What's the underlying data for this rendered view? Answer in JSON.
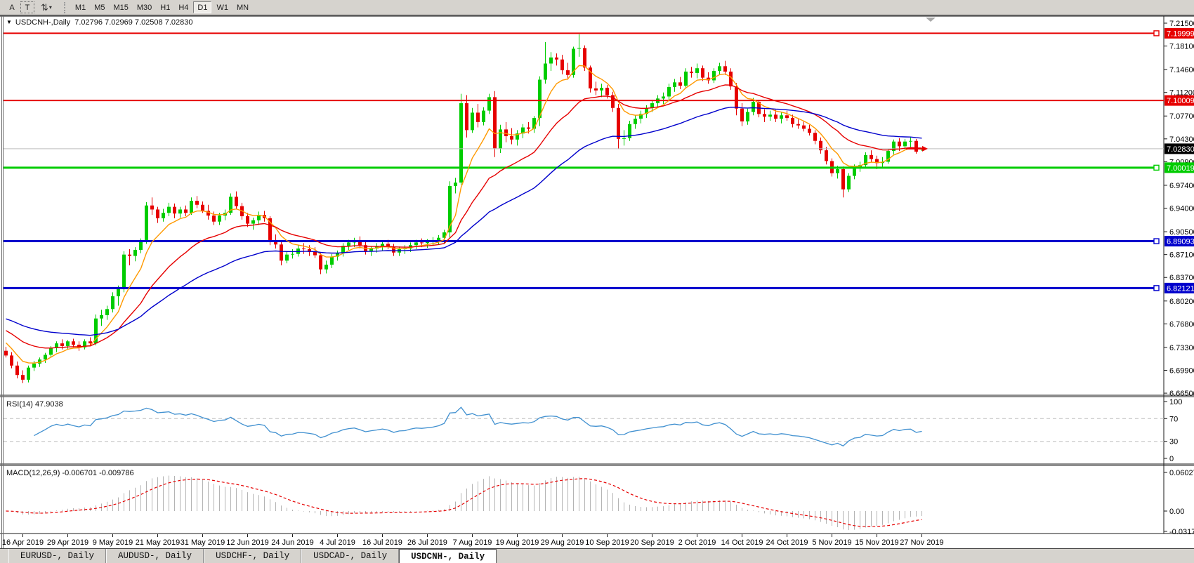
{
  "toolbar": {
    "left_buttons": [
      {
        "label": "A",
        "name": "text-label-tool-button"
      },
      {
        "label": "T",
        "name": "text-tool-button"
      }
    ],
    "arrows_tool": {
      "glyph": "⇅",
      "caret": "▾",
      "name": "arrows-tool-button"
    },
    "timeframes": [
      "M1",
      "M5",
      "M15",
      "M30",
      "H1",
      "H4",
      "D1",
      "W1",
      "MN"
    ],
    "active_timeframe": "D1"
  },
  "chart": {
    "dropdown_glyph": "▼",
    "info_line": "USDCNH-,Daily  7.02796 7.02969 7.02508 7.02830"
  },
  "rsi": {
    "label": "RSI(14) 47.9038"
  },
  "macd": {
    "label": "MACD(12,26,9) -0.006701 -0.009786"
  },
  "tabs": [
    {
      "label": "EURUSD-, Daily",
      "active": false
    },
    {
      "label": "AUDUSD-, Daily",
      "active": false
    },
    {
      "label": "USDCHF-, Daily",
      "active": false
    },
    {
      "label": "USDCAD-, Daily",
      "active": false
    },
    {
      "label": "USDCNH-, Daily",
      "active": true
    }
  ],
  "chart_data": {
    "type": "candlestick",
    "symbol": "USDCNH-",
    "timeframe": "Daily",
    "ohlc_display": {
      "open": "7.02796",
      "high": "7.02969",
      "low": "7.02508",
      "close": "7.02830"
    },
    "up_color": "#00cc00",
    "down_color": "#e60000",
    "current_price": 7.0283,
    "current_price_line_color": "#bdbdbd",
    "price_axis_ticks": [
      "7.21500",
      "7.18100",
      "7.14600",
      "7.11200",
      "7.07700",
      "7.04300",
      "7.00900",
      "6.97400",
      "6.94000",
      "6.90500",
      "6.87100",
      "6.83700",
      "6.80200",
      "6.76800",
      "6.73300",
      "6.69900",
      "6.66500"
    ],
    "price_tags": [
      {
        "text": "7.19999",
        "bg": "#e60000"
      },
      {
        "text": "7.10009",
        "bg": "#e60000"
      },
      {
        "text": "7.02830",
        "bg": "#000000"
      },
      {
        "text": "7.00019",
        "bg": "#00cc00"
      },
      {
        "text": "6.89093",
        "bg": "#0000cc"
      },
      {
        "text": "6.82121",
        "bg": "#0000cc"
      }
    ],
    "hlines": [
      {
        "price": 7.19999,
        "color": "#e60000",
        "width": 2,
        "marker": true
      },
      {
        "price": 7.10009,
        "color": "#e60000",
        "width": 2,
        "marker": false
      },
      {
        "price": 7.00019,
        "color": "#00cc00",
        "width": 3,
        "marker": true
      },
      {
        "price": 6.89093,
        "color": "#0000cc",
        "width": 3,
        "marker": true
      },
      {
        "price": 6.82121,
        "color": "#0000cc",
        "width": 3,
        "marker": true
      }
    ],
    "moving_averages": [
      {
        "period": 7,
        "color": "#ff9900",
        "seed": 6.746,
        "name": "ma-fast-orange"
      },
      {
        "period": 20,
        "color": "#e60000",
        "seed": 6.762,
        "name": "ma-mid-red"
      },
      {
        "period": 45,
        "color": "#0000cc",
        "seed": 6.778,
        "name": "ma-slow-blue"
      }
    ],
    "x_axis": {
      "dates": [
        "16 Apr 2019",
        "29 Apr 2019",
        "9 May 2019",
        "21 May 2019",
        "31 May 2019",
        "12 Jun 2019",
        "24 Jun 2019",
        "4 Jul 2019",
        "16 Jul 2019",
        "26 Jul 2019",
        "7 Aug 2019",
        "19 Aug 2019",
        "29 Aug 2019",
        "10 Sep 2019",
        "20 Sep 2019",
        "2 Oct 2019",
        "14 Oct 2019",
        "24 Oct 2019",
        "5 Nov 2019",
        "15 Nov 2019",
        "27 Nov 2019"
      ],
      "first_tick_bar": 3,
      "bars_per_tick": 8
    },
    "rsi_pane": {
      "ticks": [
        "100",
        "70",
        "30",
        "0"
      ],
      "levels": [
        70,
        30
      ],
      "line_color": "#4090d0",
      "level_color": "#bdbdbd",
      "current_value": 47.9038
    },
    "macd_pane": {
      "ticks": [
        "0.060273",
        "0.00",
        "-0.031725"
      ],
      "hist_color": "#b4b4b4",
      "signal_color": "#e60000",
      "macd_value": -0.006701,
      "signal_value": -0.009786
    },
    "candles": [
      [
        6.728,
        6.734,
        6.718,
        6.721
      ],
      [
        6.721,
        6.726,
        6.702,
        6.706
      ],
      [
        6.706,
        6.712,
        6.687,
        6.692
      ],
      [
        6.692,
        6.699,
        6.68,
        6.685
      ],
      [
        6.685,
        6.706,
        6.681,
        6.703
      ],
      [
        6.703,
        6.713,
        6.698,
        6.709
      ],
      [
        6.709,
        6.718,
        6.704,
        6.715
      ],
      [
        6.715,
        6.725,
        6.71,
        6.722
      ],
      [
        6.722,
        6.735,
        6.718,
        6.732
      ],
      [
        6.732,
        6.742,
        6.726,
        6.739
      ],
      [
        6.739,
        6.745,
        6.73,
        6.735
      ],
      [
        6.735,
        6.744,
        6.731,
        6.742
      ],
      [
        6.742,
        6.746,
        6.733,
        6.737
      ],
      [
        6.737,
        6.742,
        6.728,
        6.733
      ],
      [
        6.733,
        6.745,
        6.73,
        6.742
      ],
      [
        6.742,
        6.748,
        6.735,
        6.739
      ],
      [
        6.739,
        6.782,
        6.736,
        6.776
      ],
      [
        6.776,
        6.789,
        6.765,
        6.781
      ],
      [
        6.781,
        6.795,
        6.774,
        6.79
      ],
      [
        6.79,
        6.815,
        6.785,
        6.809
      ],
      [
        6.809,
        6.825,
        6.795,
        6.82
      ],
      [
        6.82,
        6.876,
        6.815,
        6.871
      ],
      [
        6.871,
        6.879,
        6.855,
        6.869
      ],
      [
        6.869,
        6.882,
        6.861,
        6.878
      ],
      [
        6.878,
        6.895,
        6.873,
        6.891
      ],
      [
        6.891,
        6.949,
        6.887,
        6.944
      ],
      [
        6.944,
        6.956,
        6.93,
        6.938
      ],
      [
        6.938,
        6.942,
        6.918,
        6.925
      ],
      [
        6.925,
        6.939,
        6.92,
        6.933
      ],
      [
        6.933,
        6.948,
        6.928,
        6.942
      ],
      [
        6.942,
        6.947,
        6.925,
        6.932
      ],
      [
        6.932,
        6.942,
        6.926,
        6.938
      ],
      [
        6.938,
        6.944,
        6.928,
        6.933
      ],
      [
        6.933,
        6.956,
        6.93,
        6.951
      ],
      [
        6.951,
        6.958,
        6.94,
        6.945
      ],
      [
        6.945,
        6.95,
        6.933,
        6.936
      ],
      [
        6.936,
        6.945,
        6.923,
        6.929
      ],
      [
        6.929,
        6.935,
        6.915,
        6.92
      ],
      [
        6.92,
        6.933,
        6.915,
        6.929
      ],
      [
        6.929,
        6.938,
        6.922,
        6.933
      ],
      [
        6.933,
        6.962,
        6.93,
        6.957
      ],
      [
        6.957,
        6.965,
        6.938,
        6.943
      ],
      [
        6.943,
        6.948,
        6.923,
        6.928
      ],
      [
        6.928,
        6.933,
        6.912,
        6.917
      ],
      [
        6.917,
        6.926,
        6.908,
        6.922
      ],
      [
        6.922,
        6.935,
        6.915,
        6.93
      ],
      [
        6.93,
        6.936,
        6.92,
        6.925
      ],
      [
        6.925,
        6.928,
        6.885,
        6.892
      ],
      [
        6.892,
        6.901,
        6.88,
        6.886
      ],
      [
        6.886,
        6.892,
        6.855,
        6.862
      ],
      [
        6.862,
        6.876,
        6.858,
        6.871
      ],
      [
        6.871,
        6.879,
        6.865,
        6.872
      ],
      [
        6.872,
        6.885,
        6.868,
        6.88
      ],
      [
        6.88,
        6.888,
        6.872,
        6.879
      ],
      [
        6.879,
        6.885,
        6.869,
        6.875
      ],
      [
        6.875,
        6.882,
        6.866,
        6.87
      ],
      [
        6.87,
        6.873,
        6.842,
        6.849
      ],
      [
        6.849,
        6.862,
        6.843,
        6.856
      ],
      [
        6.856,
        6.872,
        6.851,
        6.868
      ],
      [
        6.868,
        6.877,
        6.862,
        6.873
      ],
      [
        6.873,
        6.888,
        6.868,
        6.884
      ],
      [
        6.884,
        6.893,
        6.878,
        6.889
      ],
      [
        6.889,
        6.896,
        6.882,
        6.892
      ],
      [
        6.892,
        6.898,
        6.88,
        6.885
      ],
      [
        6.885,
        6.892,
        6.871,
        6.876
      ],
      [
        6.876,
        6.884,
        6.869,
        6.88
      ],
      [
        6.88,
        6.888,
        6.874,
        6.883
      ],
      [
        6.883,
        6.891,
        6.877,
        6.887
      ],
      [
        6.887,
        6.893,
        6.879,
        6.883
      ],
      [
        6.883,
        6.887,
        6.869,
        6.874
      ],
      [
        6.874,
        6.883,
        6.869,
        6.879
      ],
      [
        6.879,
        6.885,
        6.872,
        6.88
      ],
      [
        6.88,
        6.889,
        6.875,
        6.885
      ],
      [
        6.885,
        6.893,
        6.879,
        6.889
      ],
      [
        6.889,
        6.895,
        6.882,
        6.888
      ],
      [
        6.888,
        6.894,
        6.881,
        6.89
      ],
      [
        6.89,
        6.897,
        6.884,
        6.892
      ],
      [
        6.892,
        6.9,
        6.886,
        6.896
      ],
      [
        6.896,
        6.908,
        6.887,
        6.904
      ],
      [
        6.904,
        6.98,
        6.896,
        6.973
      ],
      [
        6.973,
        6.985,
        6.962,
        6.978
      ],
      [
        6.978,
        7.11,
        6.975,
        7.096
      ],
      [
        7.096,
        7.108,
        7.045,
        7.056
      ],
      [
        7.056,
        7.089,
        7.052,
        7.082
      ],
      [
        7.082,
        7.095,
        7.06,
        7.068
      ],
      [
        7.068,
        7.09,
        7.063,
        7.085
      ],
      [
        7.085,
        7.11,
        7.08,
        7.105
      ],
      [
        7.105,
        7.114,
        7.016,
        7.029
      ],
      [
        7.029,
        7.064,
        7.022,
        7.057
      ],
      [
        7.057,
        7.068,
        7.038,
        7.047
      ],
      [
        7.047,
        7.059,
        7.035,
        7.042
      ],
      [
        7.042,
        7.056,
        7.033,
        7.051
      ],
      [
        7.051,
        7.065,
        7.044,
        7.06
      ],
      [
        7.06,
        7.068,
        7.051,
        7.058
      ],
      [
        7.058,
        7.077,
        7.052,
        7.074
      ],
      [
        7.074,
        7.136,
        7.062,
        7.131
      ],
      [
        7.131,
        7.187,
        7.125,
        7.155
      ],
      [
        7.155,
        7.172,
        7.144,
        7.164
      ],
      [
        7.164,
        7.17,
        7.152,
        7.161
      ],
      [
        7.161,
        7.168,
        7.139,
        7.145
      ],
      [
        7.145,
        7.156,
        7.131,
        7.138
      ],
      [
        7.138,
        7.18,
        7.134,
        7.177
      ],
      [
        7.177,
        7.1985,
        7.165,
        7.178
      ],
      [
        7.178,
        7.182,
        7.144,
        7.149
      ],
      [
        7.149,
        7.152,
        7.112,
        7.118
      ],
      [
        7.118,
        7.128,
        7.108,
        7.115
      ],
      [
        7.115,
        7.125,
        7.105,
        7.119
      ],
      [
        7.119,
        7.123,
        7.103,
        7.108
      ],
      [
        7.108,
        7.113,
        7.083,
        7.089
      ],
      [
        7.089,
        7.095,
        7.028,
        7.043
      ],
      [
        7.043,
        7.056,
        7.033,
        7.044
      ],
      [
        7.044,
        7.07,
        7.04,
        7.065
      ],
      [
        7.065,
        7.078,
        7.058,
        7.073
      ],
      [
        7.073,
        7.085,
        7.066,
        7.08
      ],
      [
        7.08,
        7.093,
        7.074,
        7.089
      ],
      [
        7.089,
        7.101,
        7.083,
        7.096
      ],
      [
        7.096,
        7.108,
        7.089,
        7.103
      ],
      [
        7.103,
        7.112,
        7.095,
        7.106
      ],
      [
        7.106,
        7.125,
        7.1,
        7.12
      ],
      [
        7.12,
        7.132,
        7.113,
        7.127
      ],
      [
        7.127,
        7.135,
        7.117,
        7.122
      ],
      [
        7.122,
        7.148,
        7.118,
        7.143
      ],
      [
        7.143,
        7.15,
        7.134,
        7.141
      ],
      [
        7.141,
        7.155,
        7.133,
        7.148
      ],
      [
        7.148,
        7.152,
        7.129,
        7.134
      ],
      [
        7.134,
        7.142,
        7.125,
        7.13
      ],
      [
        7.13,
        7.148,
        7.126,
        7.144
      ],
      [
        7.144,
        7.156,
        7.138,
        7.151
      ],
      [
        7.151,
        7.159,
        7.138,
        7.143
      ],
      [
        7.143,
        7.148,
        7.116,
        7.121
      ],
      [
        7.121,
        7.126,
        7.078,
        7.088
      ],
      [
        7.088,
        7.096,
        7.062,
        7.069
      ],
      [
        7.069,
        7.088,
        7.064,
        7.083
      ],
      [
        7.083,
        7.104,
        7.078,
        7.098
      ],
      [
        7.098,
        7.101,
        7.075,
        7.08
      ],
      [
        7.08,
        7.087,
        7.068,
        7.076
      ],
      [
        7.076,
        7.085,
        7.07,
        7.079
      ],
      [
        7.079,
        7.086,
        7.068,
        7.073
      ],
      [
        7.073,
        7.082,
        7.066,
        7.078
      ],
      [
        7.078,
        7.085,
        7.07,
        7.074
      ],
      [
        7.074,
        7.079,
        7.06,
        7.065
      ],
      [
        7.065,
        7.072,
        7.058,
        7.063
      ],
      [
        7.063,
        7.07,
        7.054,
        7.058
      ],
      [
        7.058,
        7.064,
        7.048,
        7.052
      ],
      [
        7.052,
        7.056,
        7.035,
        7.04
      ],
      [
        7.04,
        7.045,
        7.021,
        7.026
      ],
      [
        7.026,
        7.031,
        7.005,
        7.01
      ],
      [
        7.01,
        7.014,
        6.987,
        6.992
      ],
      [
        6.992,
        7.003,
        6.984,
        6.998
      ],
      [
        6.998,
        7.002,
        6.956,
        6.968
      ],
      [
        6.968,
        6.992,
        6.964,
        6.988
      ],
      [
        6.988,
        7.005,
        6.983,
        7.001
      ],
      [
        7.001,
        7.009,
        6.994,
        7.004
      ],
      [
        7.004,
        7.023,
        6.999,
        7.019
      ],
      [
        7.019,
        7.026,
        7.008,
        7.013
      ],
      [
        7.013,
        7.018,
        6.998,
        7.007
      ],
      [
        7.007,
        7.016,
        7.001,
        7.009
      ],
      [
        7.009,
        7.028,
        7.006,
        7.025
      ],
      [
        7.025,
        7.042,
        7.02,
        7.039
      ],
      [
        7.039,
        7.044,
        7.025,
        7.032
      ],
      [
        7.032,
        7.043,
        7.027,
        7.039
      ],
      [
        7.039,
        7.045,
        7.031,
        7.04
      ],
      [
        7.04,
        7.043,
        7.021,
        7.024
      ],
      [
        7.02796,
        7.02969,
        7.02508,
        7.0283
      ]
    ]
  }
}
